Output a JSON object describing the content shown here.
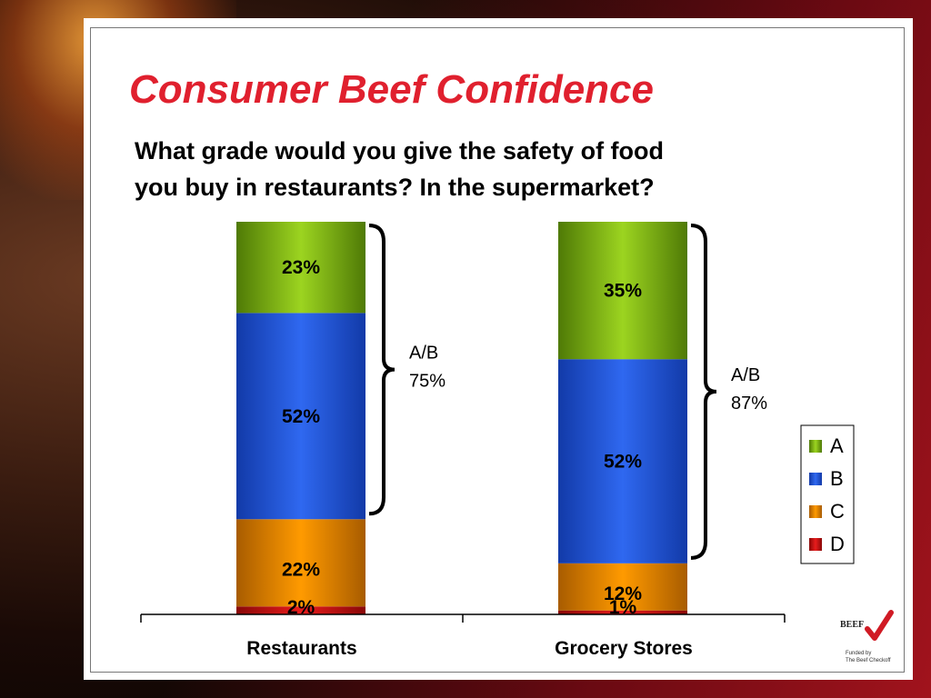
{
  "title": "Consumer Beef Confidence",
  "subtitle_line1": "What grade would you give the safety of food",
  "subtitle_line2": "you buy in restaurants? In the supermarket?",
  "chart_data": {
    "type": "bar",
    "stacked": true,
    "percent_stacked": true,
    "categories": [
      "Restaurants",
      "Grocery Stores"
    ],
    "series": [
      {
        "name": "D",
        "values": [
          2,
          1
        ],
        "labels": [
          "2%",
          "1%"
        ],
        "color": "#d81818"
      },
      {
        "name": "C",
        "values": [
          22,
          12
        ],
        "labels": [
          "22%",
          "12%"
        ],
        "color": "#ff9900"
      },
      {
        "name": "B",
        "values": [
          52,
          52
        ],
        "labels": [
          "52%",
          "52%"
        ],
        "color": "#2a5ee8"
      },
      {
        "name": "A",
        "values": [
          23,
          35
        ],
        "labels": [
          "23%",
          "35%"
        ],
        "color": "#8cc21c"
      }
    ],
    "legend_order": [
      "A",
      "B",
      "C",
      "D"
    ],
    "legend_position": "right",
    "annotations": [
      {
        "category": "Restaurants",
        "label_line1": "A/B",
        "label_line2": "75%"
      },
      {
        "category": "Grocery Stores",
        "label_line1": "A/B",
        "label_line2": "87%"
      }
    ],
    "ylim": [
      0,
      100
    ],
    "grid": false
  },
  "logo": {
    "word": "BEEF",
    "line1": "Funded by",
    "line2": "The Beef Checkoff"
  },
  "colors": {
    "title": "#e0202e",
    "accent_background": "#a0141e"
  }
}
